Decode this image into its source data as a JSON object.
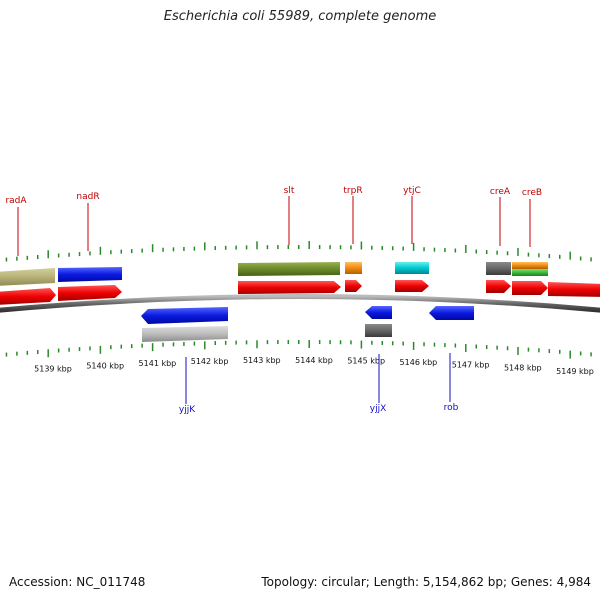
{
  "title": "Escherichia coli 55989, complete genome",
  "footer": {
    "accession": "Accession: NC_011748",
    "summary": "Topology: circular; Length: 5,154,862 bp; Genes: 4,984"
  },
  "scale": {
    "unit_suffix": " kbp",
    "labels": [
      5139,
      5140,
      5141,
      5142,
      5143,
      5144,
      5145,
      5146,
      5147,
      5148,
      5149
    ]
  },
  "genes_top": [
    {
      "name": "radA"
    },
    {
      "name": "nadR"
    },
    {
      "name": "slt"
    },
    {
      "name": "trpR"
    },
    {
      "name": "ytjC"
    },
    {
      "name": "creA"
    },
    {
      "name": "creB"
    }
  ],
  "genes_bottom": [
    {
      "name": "yjjK"
    },
    {
      "name": "yjjX"
    },
    {
      "name": "rob"
    }
  ],
  "colors": {
    "tick": "#2a8a2a",
    "backbone": "#777777",
    "gene_red": "#ee0000",
    "gene_blue": "#0a1ae0",
    "label_top": "#c00000",
    "label_bottom": "#1010c0"
  }
}
